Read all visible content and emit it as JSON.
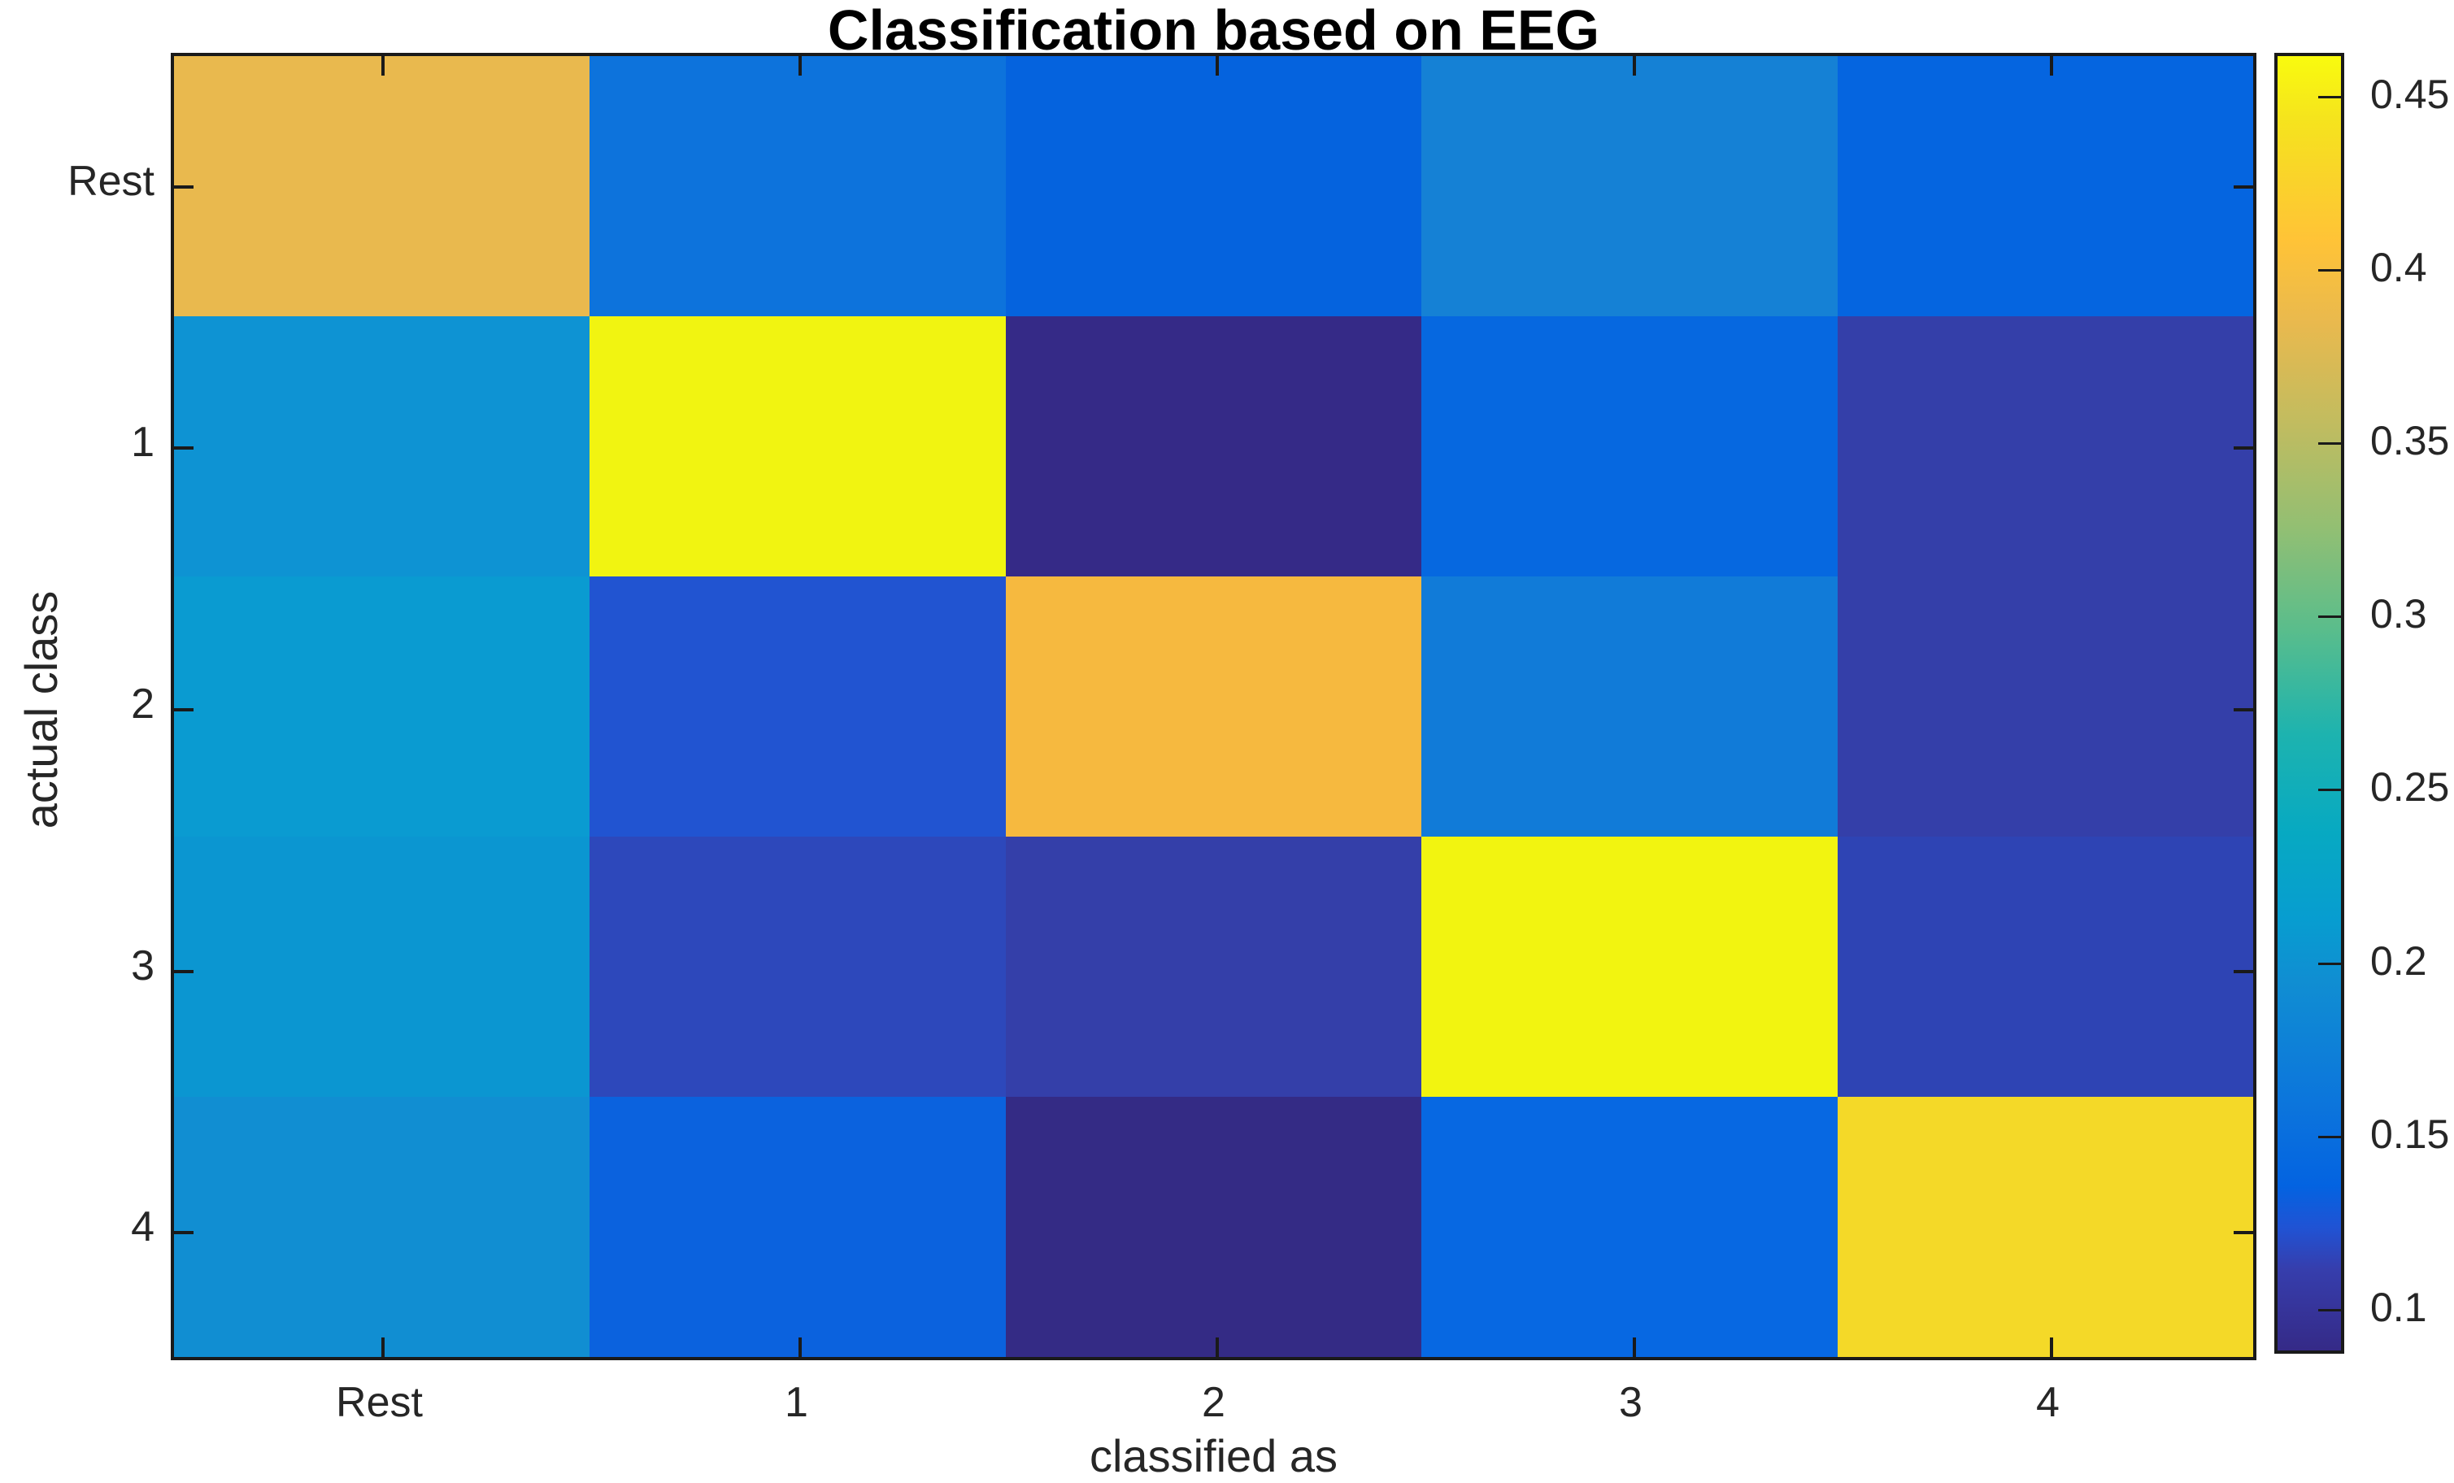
{
  "title": "Classification based on EEG",
  "chart_data": {
    "type": "heatmap",
    "title": "Classification based on EEG",
    "xlabel": "classified as",
    "ylabel": "actual class",
    "colormap": "parula",
    "x_categories": [
      "Rest",
      "1",
      "2",
      "3",
      "4"
    ],
    "y_categories": [
      "Rest",
      "1",
      "2",
      "3",
      "4"
    ],
    "values": [
      [
        0.39,
        0.16,
        0.135,
        0.18,
        0.135
      ],
      [
        0.2,
        0.45,
        0.09,
        0.145,
        0.105
      ],
      [
        0.21,
        0.12,
        0.395,
        0.17,
        0.105
      ],
      [
        0.205,
        0.115,
        0.105,
        0.45,
        0.115
      ],
      [
        0.195,
        0.14,
        0.09,
        0.145,
        0.43
      ]
    ],
    "cell_colors": [
      [
        "#e9b94e",
        "#0d73dc",
        "#0563de",
        "#1581d5",
        "#0565e0"
      ],
      [
        "#0e93d3",
        "#f1f411",
        "#352a87",
        "#0668e0",
        "#343fa9"
      ],
      [
        "#0a9bd1",
        "#2154d1",
        "#f6b93f",
        "#117bd8",
        "#343fa9"
      ],
      [
        "#0b96d1",
        "#2d48bb",
        "#343fa9",
        "#f2f410",
        "#2e44b4"
      ],
      [
        "#118ed2",
        "#0b62de",
        "#342b85",
        "#0768e2",
        "#f4d928"
      ]
    ],
    "colorbar": {
      "vmin": 0.088,
      "vmax": 0.4615,
      "tick_values": [
        0.45,
        0.4,
        0.35,
        0.3,
        0.25,
        0.2,
        0.15,
        0.1
      ],
      "tick_labels": [
        "0.45",
        "0.4",
        "0.35",
        "0.3",
        "0.25",
        "0.2",
        "0.15",
        "0.1"
      ],
      "gradient_stops": [
        {
          "pos": 0.0,
          "color": "#352a87"
        },
        {
          "pos": 0.063,
          "color": "#363ead"
        },
        {
          "pos": 0.095,
          "color": "#2053d4"
        },
        {
          "pos": 0.127,
          "color": "#0363e1"
        },
        {
          "pos": 0.19,
          "color": "#0c75dc"
        },
        {
          "pos": 0.286,
          "color": "#108ed2"
        },
        {
          "pos": 0.333,
          "color": "#079dd0"
        },
        {
          "pos": 0.4,
          "color": "#07a9c2"
        },
        {
          "pos": 0.476,
          "color": "#1db3af"
        },
        {
          "pos": 0.556,
          "color": "#59bd8c"
        },
        {
          "pos": 0.635,
          "color": "#92bf73"
        },
        {
          "pos": 0.714,
          "color": "#c0bc60"
        },
        {
          "pos": 0.794,
          "color": "#e9b94e"
        },
        {
          "pos": 0.857,
          "color": "#ffc337"
        },
        {
          "pos": 0.905,
          "color": "#fad32a"
        },
        {
          "pos": 0.952,
          "color": "#f5e41d"
        },
        {
          "pos": 1.0,
          "color": "#f9fb0e"
        }
      ]
    },
    "axis_color": "#1a1a1a",
    "grid": false,
    "legend_position": "colorbar-right"
  }
}
